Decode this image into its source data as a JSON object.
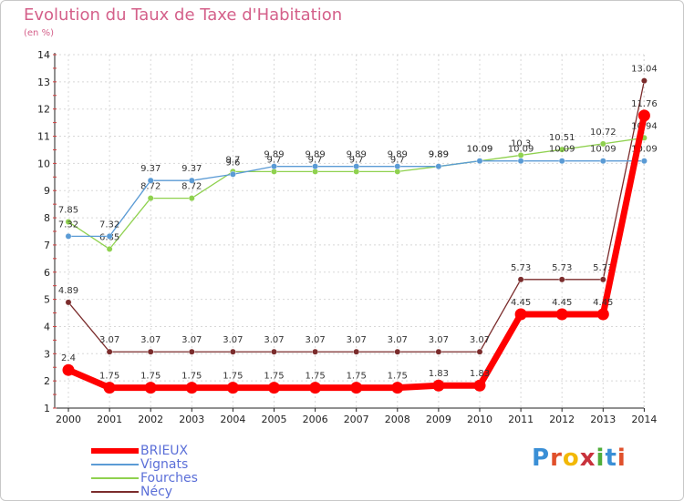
{
  "title": "Evolution du Taux de Taxe d'Habitation",
  "subtitle": "(en %)",
  "logo": {
    "text": "Proxiti",
    "colors": [
      "#3a8fd6",
      "#e0502b",
      "#f2b807",
      "#c8323c",
      "#4fae3a",
      "#3a8fd6",
      "#e0502b"
    ]
  },
  "chart_data": {
    "type": "line",
    "x": [
      "2000",
      "2001",
      "2002",
      "2003",
      "2004",
      "2005",
      "2006",
      "2007",
      "2008",
      "2009",
      "2010",
      "2011",
      "2012",
      "2013",
      "2014"
    ],
    "ylim": [
      1,
      14
    ],
    "yticks": [
      1,
      2,
      3,
      4,
      5,
      6,
      7,
      8,
      9,
      10,
      11,
      12,
      13,
      14
    ],
    "grid": true,
    "legend_position": "bottom-left",
    "series": [
      {
        "name": "BRIEUX",
        "color": "#ff0000",
        "values": [
          2.4,
          1.75,
          1.75,
          1.75,
          1.75,
          1.75,
          1.75,
          1.75,
          1.75,
          1.83,
          1.83,
          4.45,
          4.45,
          4.45,
          11.76
        ],
        "labels": [
          "2.4",
          "1.75",
          "1.75",
          "1.75",
          "1.75",
          "1.75",
          "1.75",
          "1.75",
          "1.75",
          "1.83",
          "1.83",
          "4.45",
          "4.45",
          "4.45",
          "11.76"
        ]
      },
      {
        "name": "Vignats",
        "color": "#5b9bd5",
        "values": [
          7.32,
          7.32,
          9.37,
          9.37,
          9.6,
          9.89,
          9.89,
          9.89,
          9.89,
          9.89,
          10.09,
          10.09,
          10.09,
          10.09,
          10.09
        ],
        "labels": [
          "7.32",
          "7.32",
          "9.37",
          "9.37",
          "9.6",
          "9.89",
          "9.89",
          "9.89",
          "9.89",
          "9.89",
          "10.09",
          "10.09",
          "10.09",
          "10.09",
          "10.09"
        ]
      },
      {
        "name": "Fourches",
        "color": "#8fd14f",
        "values": [
          7.85,
          6.85,
          8.72,
          8.72,
          9.7,
          9.7,
          9.7,
          9.7,
          9.7,
          9.89,
          10.09,
          10.3,
          10.51,
          10.72,
          10.94
        ],
        "labels": [
          "7.85",
          "6.85",
          "8.72",
          "8.72",
          "9.7",
          "9.7",
          "9.7",
          "9.7",
          "9.7",
          "9.89",
          "10.09",
          "10.3",
          "10.51",
          "10.72",
          "10.94"
        ]
      },
      {
        "name": "Nécy",
        "color": "#7b2c2c",
        "values": [
          4.89,
          3.07,
          3.07,
          3.07,
          3.07,
          3.07,
          3.07,
          3.07,
          3.07,
          3.07,
          3.07,
          5.73,
          5.73,
          5.73,
          13.04
        ],
        "labels": [
          "4.89",
          "3.07",
          "3.07",
          "3.07",
          "3.07",
          "3.07",
          "3.07",
          "3.07",
          "3.07",
          "3.07",
          "3.07",
          "5.73",
          "5.73",
          "5.73",
          "13.04"
        ]
      }
    ]
  }
}
